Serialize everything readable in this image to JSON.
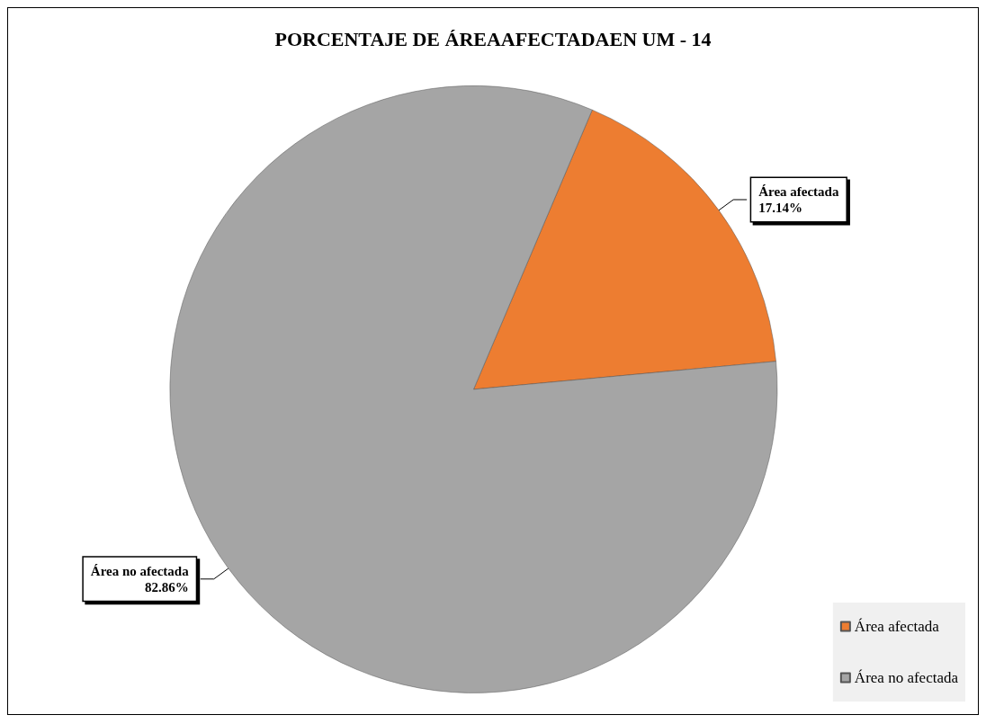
{
  "chart_data": {
    "type": "pie",
    "title": "PORCENTAJE DE ÁREAAFECTADAEN UM - 14",
    "categories": [
      "Área afectada",
      "Área no afectada"
    ],
    "values": [
      17.14,
      82.86
    ],
    "colors": [
      "#ed7d31",
      "#a5a5a5"
    ],
    "value_labels": [
      "17.14%",
      "82.86%"
    ],
    "legend": "bottom right"
  }
}
